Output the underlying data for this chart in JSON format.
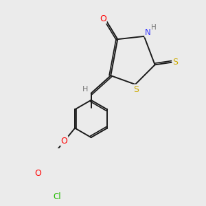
{
  "bg_color": "#ebebeb",
  "bond_color": "#1a1a1a",
  "atom_colors": {
    "O": "#ff0000",
    "N": "#3333ff",
    "S": "#ccaa00",
    "Cl": "#22bb00",
    "H": "#777777",
    "C": "#1a1a1a"
  },
  "line_width": 1.4,
  "dbo": 0.012,
  "figsize": [
    3.0,
    3.0
  ],
  "dpi": 100
}
